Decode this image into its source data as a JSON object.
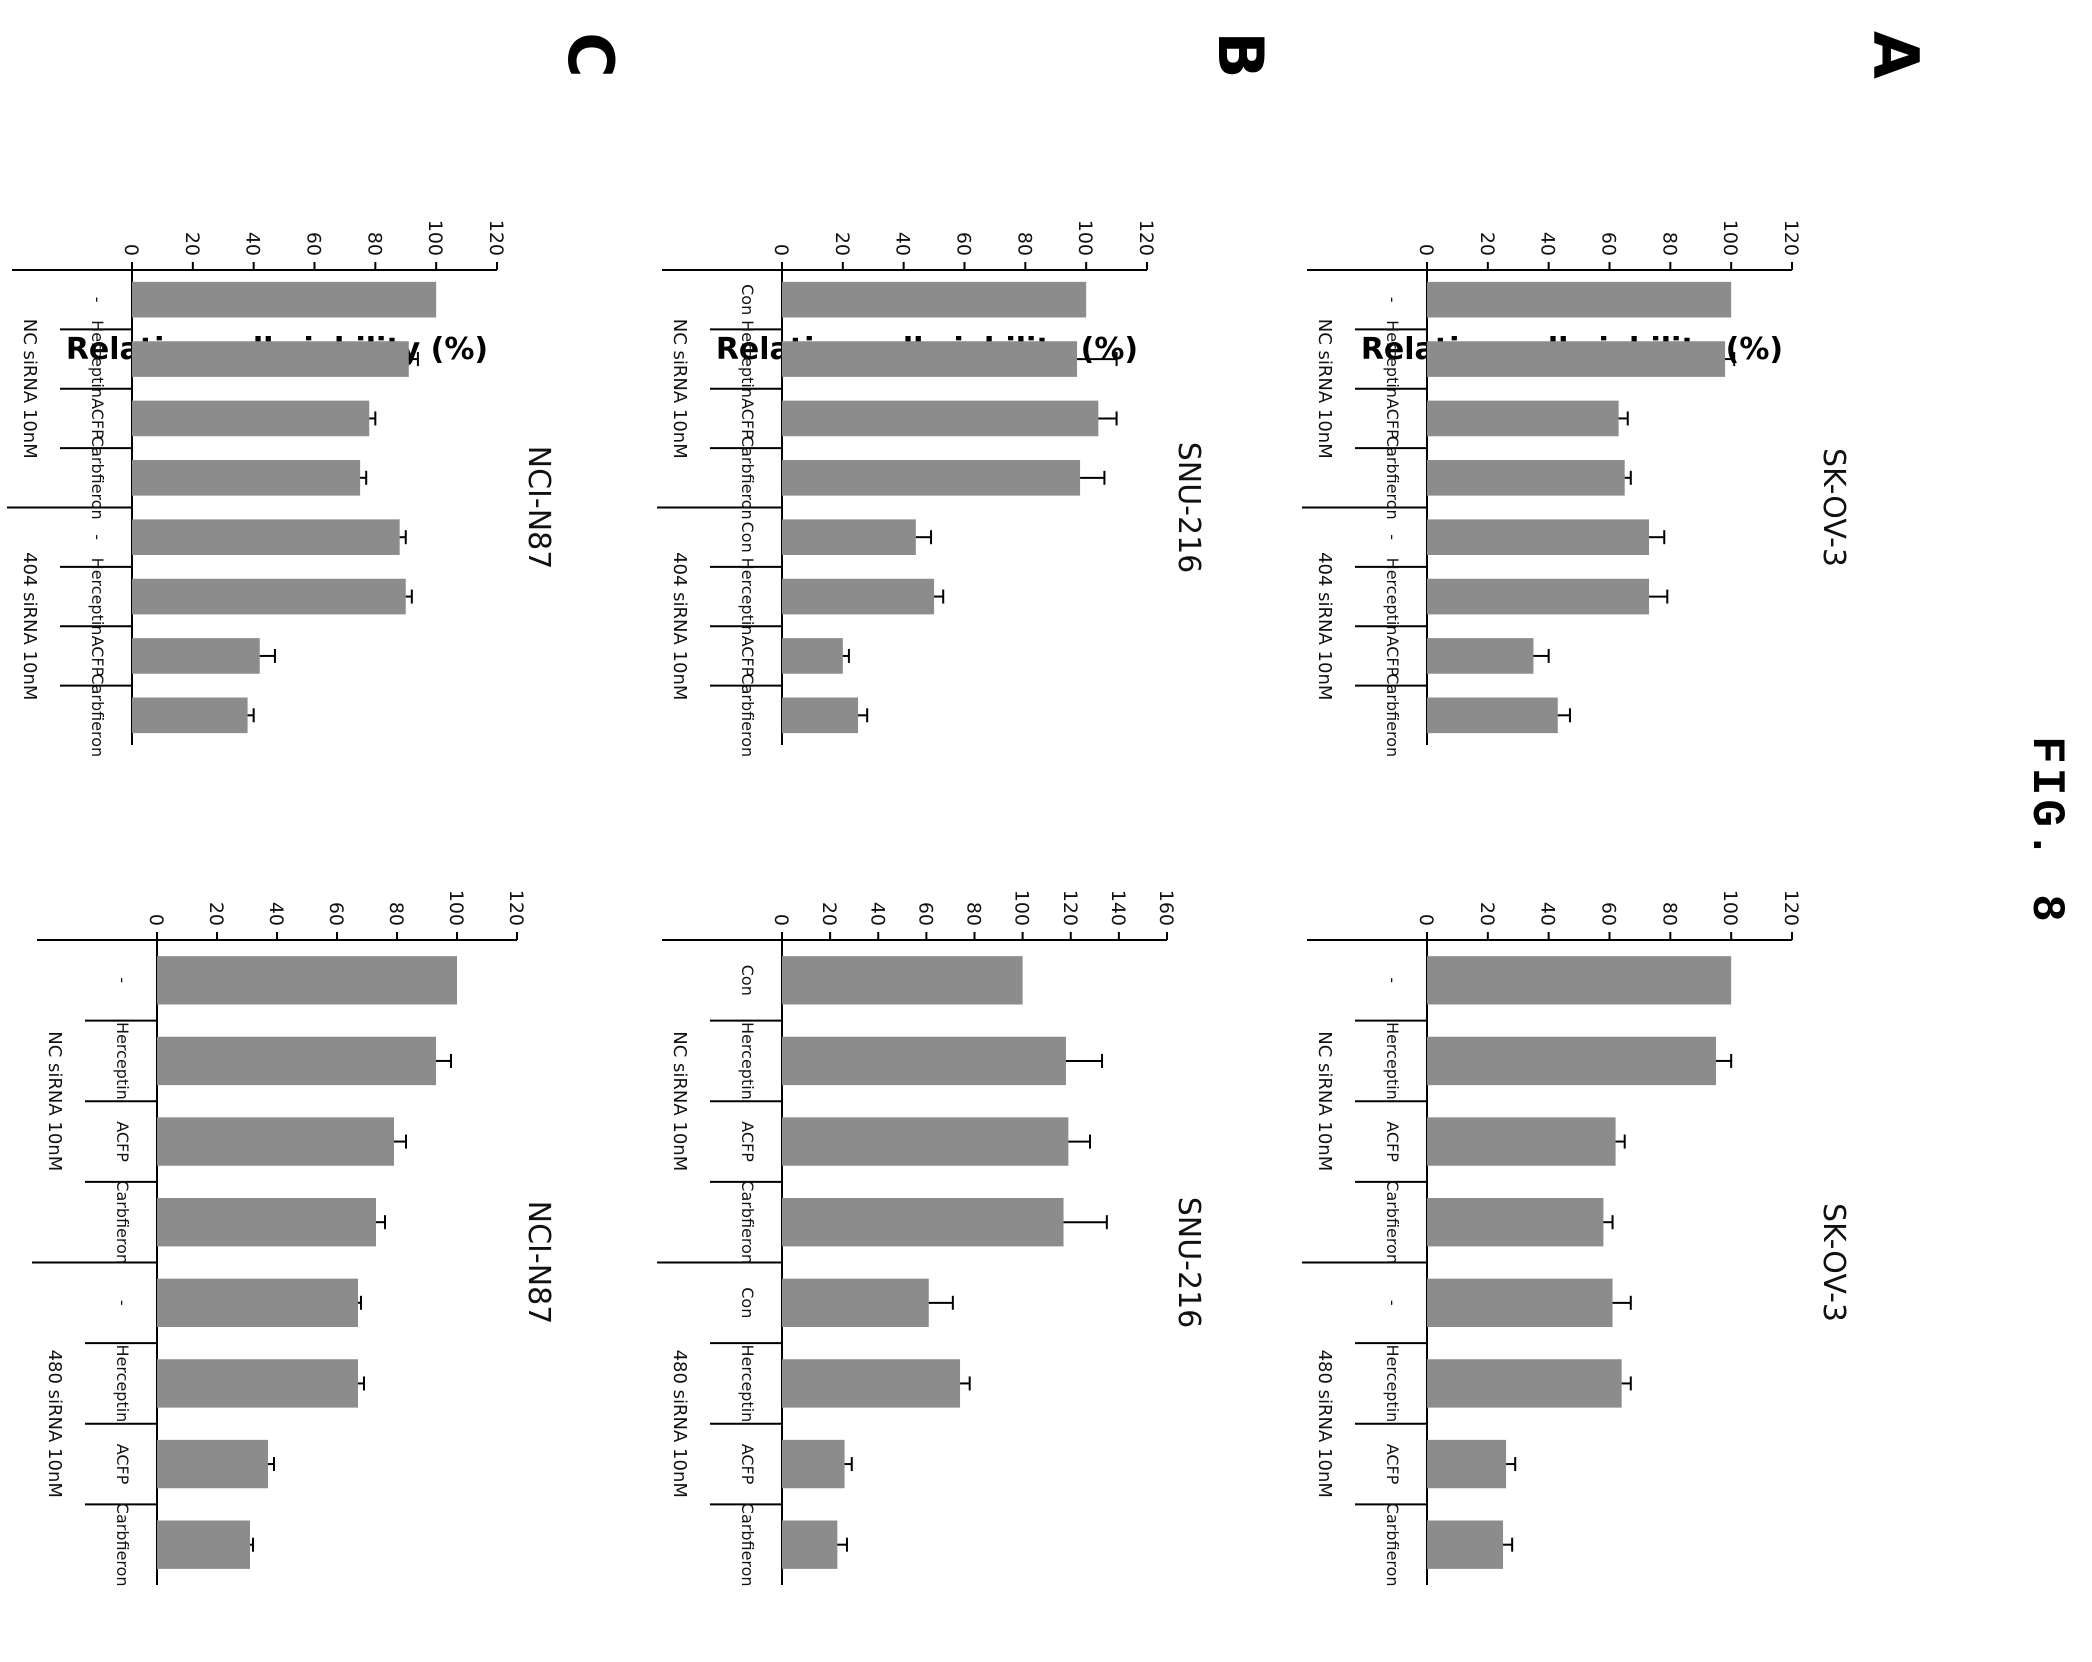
{
  "figure_title": "FIG. 8",
  "rows": [
    {
      "letter": "A",
      "ylabel": "Relative cell viability (%)"
    },
    {
      "letter": "B",
      "ylabel": "Relative cell viability (%)"
    },
    {
      "letter": "C",
      "ylabel": "Relative cell viability (%)"
    }
  ],
  "colors": {
    "bar": "#8c8c8c",
    "axis": "#000000"
  },
  "chart_data": [
    {
      "type": "bar",
      "title": "SK-OV-3",
      "ylim": [
        0,
        120
      ],
      "yticks": [
        0,
        20,
        40,
        60,
        80,
        100,
        120
      ],
      "categories": [
        "-",
        "Herceptin",
        "ACFP",
        "Carbfieron",
        "-",
        "Herceptin",
        "ACFP",
        "Carbfieron"
      ],
      "groups": [
        "NC siRNA 10nM",
        "404 siRNA 10nM"
      ],
      "values": [
        100,
        98,
        63,
        65,
        73,
        73,
        35,
        43
      ],
      "errors": [
        0,
        3,
        3,
        2,
        5,
        6,
        5,
        4
      ]
    },
    {
      "type": "bar",
      "title": "SK-OV-3",
      "ylim": [
        0,
        120
      ],
      "yticks": [
        0,
        20,
        40,
        60,
        80,
        100,
        120
      ],
      "categories": [
        "-",
        "Herceptin",
        "ACFP",
        "Carbfieron",
        "-",
        "Herceptin",
        "ACFP",
        "Carbfieron"
      ],
      "groups": [
        "NC siRNA 10nM",
        "480 siRNA 10nM"
      ],
      "values": [
        100,
        95,
        62,
        58,
        61,
        64,
        26,
        25
      ],
      "errors": [
        0,
        5,
        3,
        3,
        6,
        3,
        3,
        3
      ]
    },
    {
      "type": "bar",
      "title": "SNU-216",
      "ylim": [
        0,
        120
      ],
      "yticks": [
        0,
        20,
        40,
        60,
        80,
        100,
        120
      ],
      "categories": [
        "Con",
        "Herceptin",
        "ACFP",
        "Carbfieron",
        "Con",
        "Herceptin",
        "ACFP",
        "Carbfieron"
      ],
      "groups": [
        "NC siRNA 10nM",
        "404 siRNA 10nM"
      ],
      "values": [
        100,
        97,
        104,
        98,
        44,
        50,
        20,
        25
      ],
      "errors": [
        0,
        13,
        6,
        8,
        5,
        3,
        2,
        3
      ]
    },
    {
      "type": "bar",
      "title": "SNU-216",
      "ylim": [
        0,
        160
      ],
      "yticks": [
        0,
        20,
        40,
        60,
        80,
        100,
        120,
        140,
        160
      ],
      "categories": [
        "Con",
        "Herceptin",
        "ACFP",
        "Carbfieron",
        "Con",
        "Herceptin",
        "ACFP",
        "Carbfieron"
      ],
      "groups": [
        "NC siRNA 10nM",
        "480 siRNA 10nM"
      ],
      "values": [
        100,
        118,
        119,
        117,
        61,
        74,
        26,
        23
      ],
      "errors": [
        0,
        15,
        9,
        18,
        10,
        4,
        3,
        4
      ]
    },
    {
      "type": "bar",
      "title": "NCI-N87",
      "ylim": [
        0,
        120
      ],
      "yticks": [
        0,
        20,
        40,
        60,
        80,
        100,
        120
      ],
      "categories": [
        "-",
        "Herceptin",
        "ACFP",
        "Carbfieron",
        "-",
        "Herceptin",
        "ACFP",
        "Carbfieron"
      ],
      "groups": [
        "NC siRNA 10nM",
        "404 siRNA 10nM"
      ],
      "values": [
        100,
        91,
        78,
        75,
        88,
        90,
        42,
        38
      ],
      "errors": [
        0,
        3,
        2,
        2,
        2,
        2,
        5,
        2
      ]
    },
    {
      "type": "bar",
      "title": "NCI-N87",
      "ylim": [
        0,
        120
      ],
      "yticks": [
        0,
        20,
        40,
        60,
        80,
        100,
        120
      ],
      "categories": [
        "-",
        "Herceptin",
        "ACFP",
        "Carbfieron",
        "-",
        "Herceptin",
        "ACFP",
        "Carbfieron"
      ],
      "groups": [
        "NC siRNA 10nM",
        "480 siRNA 10nM"
      ],
      "values": [
        100,
        93,
        79,
        73,
        67,
        67,
        37,
        31
      ],
      "errors": [
        0,
        5,
        4,
        3,
        1,
        2,
        2,
        1
      ]
    }
  ]
}
